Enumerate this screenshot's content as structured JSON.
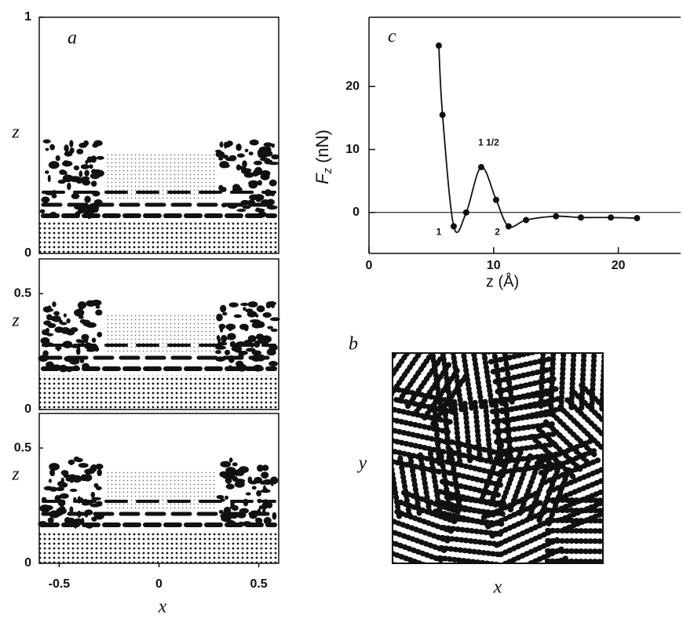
{
  "chart_data": [
    {
      "type": "snapshot",
      "label": "a",
      "ylabel": "z",
      "xlim": [
        -0.6,
        0.6
      ],
      "ylim": [
        0,
        1
      ],
      "yticks": [
        0,
        1
      ]
    },
    {
      "type": "snapshot",
      "ylabel": "z",
      "xlim": [
        -0.6,
        0.6
      ],
      "ylim": [
        0,
        0.65
      ],
      "yticks": [
        0,
        0.5
      ]
    },
    {
      "type": "snapshot",
      "ylabel": "z",
      "xlabel": "x",
      "xlim": [
        -0.6,
        0.6
      ],
      "ylim": [
        0,
        0.65
      ],
      "yticks": [
        0,
        0.5
      ],
      "xticks": [
        -0.5,
        0,
        0.5
      ]
    },
    {
      "type": "line",
      "label": "c",
      "ylabel": {
        "main": "F",
        "sub": "z",
        "unit": "(nN)"
      },
      "xlabel": "z (Å)",
      "x": [
        5.6,
        5.9,
        6.8,
        7.8,
        9.0,
        10.2,
        11.2,
        12.6,
        15.0,
        17.0,
        19.4,
        21.5
      ],
      "values": [
        26.5,
        15.5,
        -2.2,
        0,
        7.2,
        2,
        -2.2,
        -1.2,
        -0.6,
        -0.8,
        -0.8,
        -0.9
      ],
      "xlim": [
        0,
        25
      ],
      "xticks": [
        0,
        10,
        20
      ],
      "ylim": [
        -6.5,
        31
      ],
      "yticks": [
        0,
        10,
        20
      ],
      "annotations": [
        {
          "text": "1",
          "x": 5.6,
          "y": -3.2
        },
        {
          "text": "1 1/2",
          "x": 9.6,
          "y": 11
        },
        {
          "text": "2",
          "x": 10.3,
          "y": -3.2
        }
      ]
    },
    {
      "type": "snapshot",
      "label": "b",
      "xlabel": "x",
      "ylabel": "y"
    }
  ]
}
